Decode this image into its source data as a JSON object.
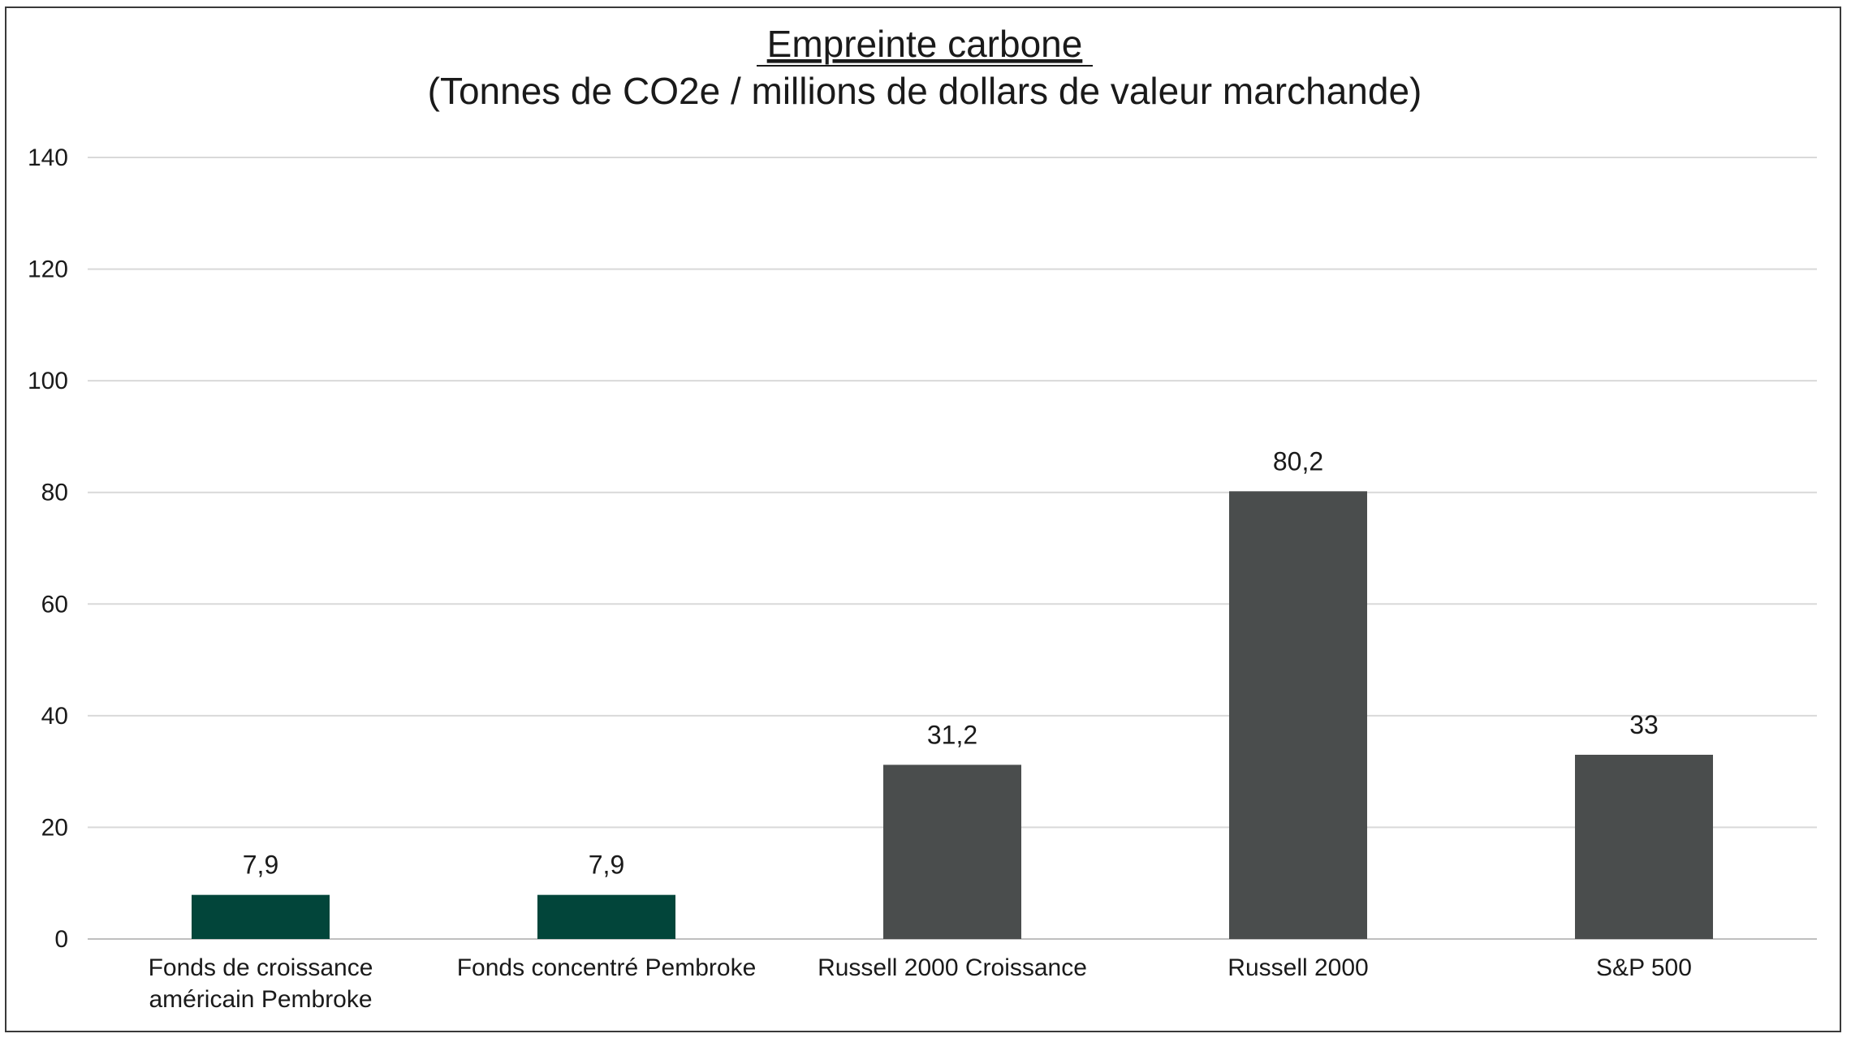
{
  "chart_data": {
    "type": "bar",
    "title": "Empreinte carbone",
    "subtitle": "(Tonnes de CO2e / millions de dollars de valeur marchande)",
    "xlabel": "",
    "ylabel": "",
    "ylim": [
      0,
      140
    ],
    "yticks": [
      0,
      20,
      40,
      60,
      80,
      100,
      120,
      140
    ],
    "ytick_labels": [
      "0",
      "20",
      "40",
      "60",
      "80",
      "100",
      "120",
      "140"
    ],
    "grid": true,
    "legend": "none",
    "categories": [
      "Fonds de croissance américain Pembroke",
      "Fonds concentré Pembroke",
      "Russell 2000 Croissance",
      "Russell 2000",
      "S&P 500"
    ],
    "category_label_lines": [
      [
        "Fonds de croissance",
        "américain Pembroke"
      ],
      [
        "Fonds concentré Pembroke"
      ],
      [
        "Russell 2000 Croissance"
      ],
      [
        "Russell 2000"
      ],
      [
        "S&P 500"
      ]
    ],
    "values": [
      7.9,
      7.9,
      31.2,
      80.2,
      33
    ],
    "value_labels": [
      "7,9",
      "7,9",
      "31,2",
      "80,2",
      "33"
    ],
    "bar_colors": [
      "#02453a",
      "#02453a",
      "#4a4d4d",
      "#4a4d4d",
      "#4a4d4d"
    ],
    "gridline_color": "#d9d9d9",
    "axis_color": "#bfbfbf"
  }
}
